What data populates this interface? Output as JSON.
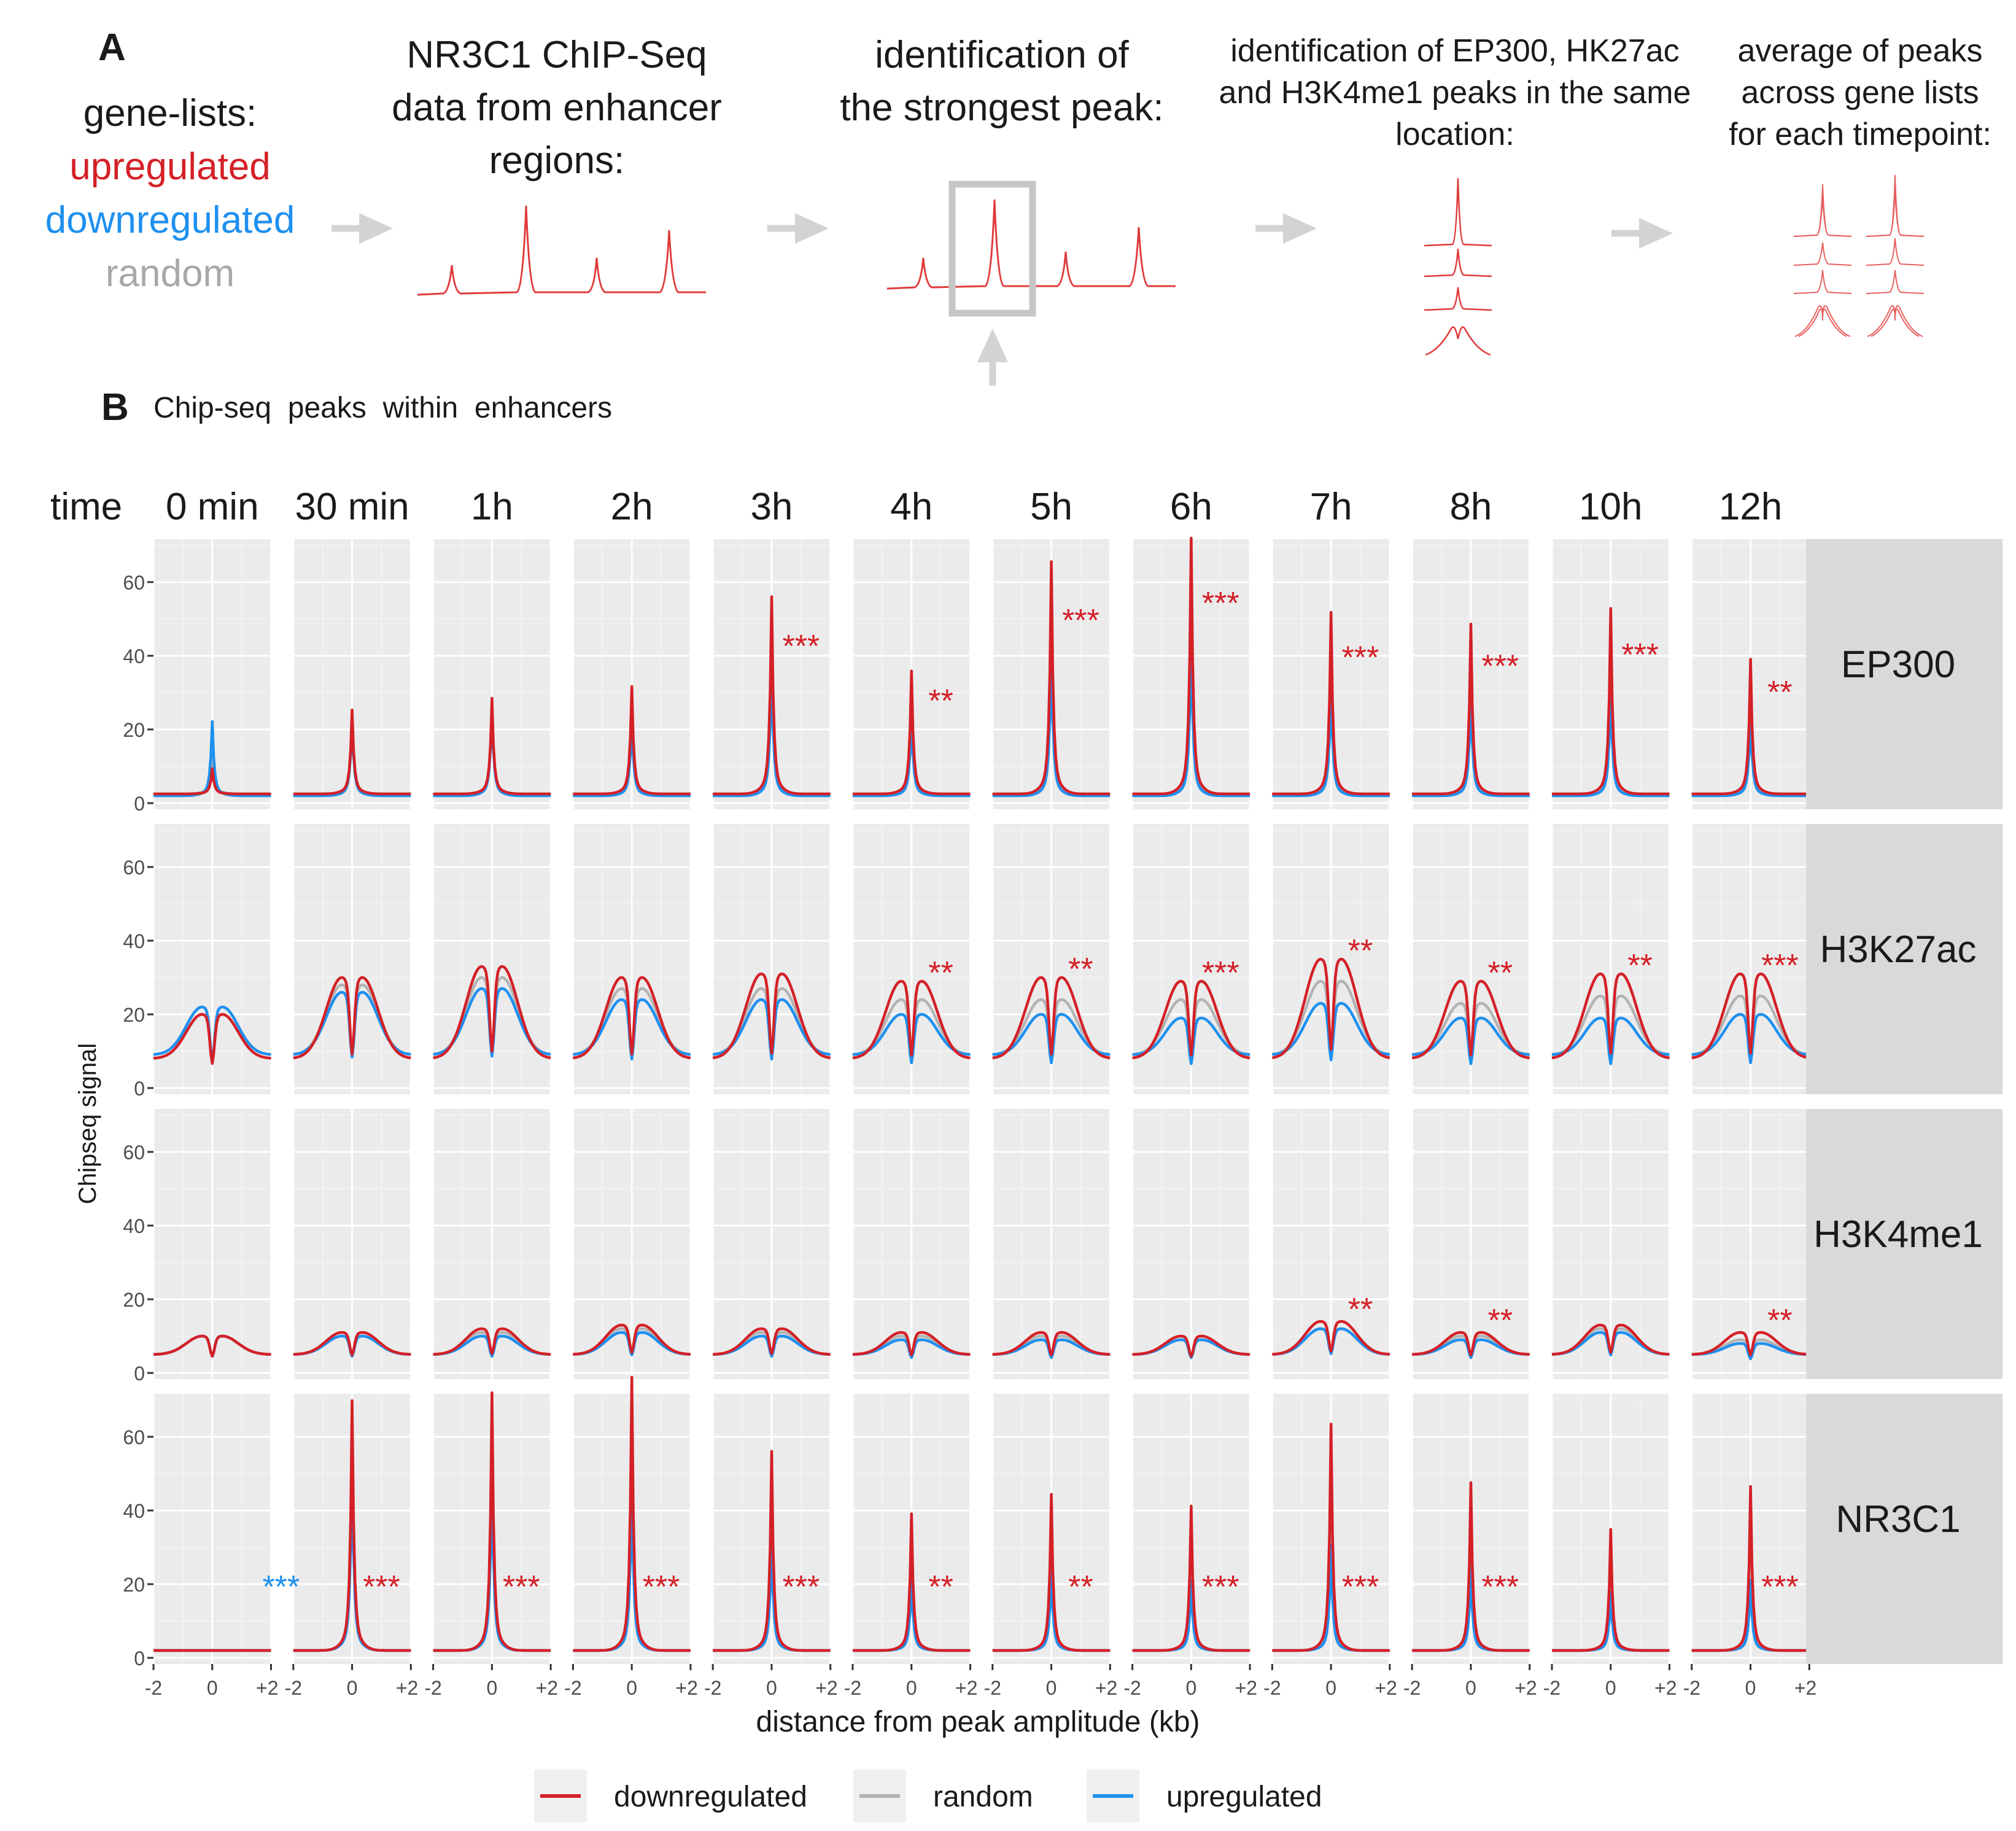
{
  "colors": {
    "downregulated": "#d42027",
    "random": "#b3b3b3",
    "upregulated": "#1e90f0",
    "panel_bg": "#ebebeb",
    "strip_bg": "#d9d9d9",
    "arrow": "#d3d3d3",
    "schematic_red": "#e03b3b",
    "text": "#1a1a1a"
  },
  "panelA": {
    "label": "A",
    "gene_lists": {
      "title": "gene-lists:",
      "items": [
        "upregulated",
        "downregulated",
        "random"
      ]
    },
    "steps": [
      {
        "lines": [
          "NR3C1 ChIP-Seq",
          "data from enhancer",
          "regions:"
        ]
      },
      {
        "lines": [
          "identification of",
          "the strongest peak:"
        ]
      },
      {
        "lines": [
          "identification of EP300, HK27ac",
          "and H3K4me1 peaks in the same",
          "location:"
        ]
      },
      {
        "lines": [
          "average of peaks",
          "across gene lists",
          "for each timepoint:"
        ]
      }
    ]
  },
  "panelB": {
    "label": "B",
    "title": "Chip-seq  peaks  within  enhancers"
  },
  "chart_data": {
    "type": "line",
    "time_header": "time",
    "timepoints": [
      "0 min",
      "30 min",
      "1h",
      "2h",
      "3h",
      "4h",
      "5h",
      "6h",
      "7h",
      "8h",
      "10h",
      "12h"
    ],
    "rows": [
      "EP300",
      "H3K27ac",
      "H3K4me1",
      "NR3C1"
    ],
    "xlabel": "distance from peak amplitude (kb)",
    "ylabel": "Chipseq signal",
    "xlim": [
      -2,
      2
    ],
    "ylim": [
      0,
      70
    ],
    "x_ticks": [
      "-2",
      "0",
      "+2"
    ],
    "y_ticks": [
      0,
      20,
      40,
      60
    ],
    "series_order": [
      "downregulated",
      "random",
      "upregulated"
    ],
    "legend": {
      "position": "bottom",
      "entries": [
        "downregulated",
        "random",
        "upregulated"
      ]
    },
    "peaks": {
      "EP300": {
        "downregulated": [
          9,
          24,
          27,
          30,
          53,
          34,
          62,
          68,
          49,
          46,
          50,
          37
        ],
        "random": [
          15,
          23,
          25,
          26,
          42,
          26,
          48,
          52,
          37,
          34,
          38,
          27
        ],
        "upregulated": [
          21,
          22,
          25,
          22,
          36,
          23,
          40,
          43,
          31,
          29,
          30,
          23
        ]
      },
      "H3K27ac": {
        "downregulated": [
          20,
          30,
          33,
          30,
          31,
          29,
          30,
          29,
          35,
          29,
          31,
          31
        ],
        "random": [
          22,
          28,
          30,
          27,
          27,
          24,
          24,
          24,
          29,
          23,
          25,
          25
        ],
        "upregulated": [
          22,
          26,
          27,
          24,
          24,
          20,
          20,
          19,
          23,
          19,
          19,
          20
        ]
      },
      "H3K4me1": {
        "downregulated": [
          10,
          11,
          12,
          13,
          12,
          11,
          11,
          10,
          14,
          11,
          13,
          11
        ],
        "random": [
          10,
          11,
          11,
          12,
          11,
          10,
          10,
          9,
          12,
          10,
          12,
          9
        ],
        "upregulated": [
          10,
          10,
          10,
          11,
          10,
          9,
          9,
          9,
          12,
          9,
          11,
          8
        ]
      },
      "NR3C1": {
        "downregulated": [
          2,
          66,
          68,
          72,
          53,
          37,
          42,
          39,
          60,
          45,
          33,
          44
        ],
        "random": [
          2,
          55,
          55,
          55,
          40,
          28,
          30,
          29,
          40,
          32,
          25,
          30
        ],
        "upregulated": [
          2,
          51,
          49,
          46,
          31,
          21,
          23,
          20,
          29,
          23,
          17,
          20
        ]
      }
    },
    "baselines": {
      "EP300": {
        "downregulated": 2.5,
        "random": 2.5,
        "upregulated": 2
      },
      "H3K27ac": {
        "downregulated": 8,
        "random": 9,
        "upregulated": 9
      },
      "H3K4me1": {
        "downregulated": 5,
        "random": 5,
        "upregulated": 5
      },
      "NR3C1": {
        "downregulated": 2,
        "random": 2,
        "upregulated": 2
      }
    },
    "annotations": [
      {
        "row": "EP300",
        "timepoint": "3h",
        "text": "***",
        "color": "downregulated"
      },
      {
        "row": "EP300",
        "timepoint": "4h",
        "text": "**",
        "color": "downregulated"
      },
      {
        "row": "EP300",
        "timepoint": "5h",
        "text": "***",
        "color": "downregulated"
      },
      {
        "row": "EP300",
        "timepoint": "6h",
        "text": "***",
        "color": "downregulated"
      },
      {
        "row": "EP300",
        "timepoint": "7h",
        "text": "***",
        "color": "downregulated"
      },
      {
        "row": "EP300",
        "timepoint": "8h",
        "text": "***",
        "color": "downregulated"
      },
      {
        "row": "EP300",
        "timepoint": "10h",
        "text": "***",
        "color": "downregulated"
      },
      {
        "row": "EP300",
        "timepoint": "12h",
        "text": "**",
        "color": "downregulated"
      },
      {
        "row": "H3K27ac",
        "timepoint": "4h",
        "text": "**",
        "color": "downregulated"
      },
      {
        "row": "H3K27ac",
        "timepoint": "5h",
        "text": "**",
        "color": "downregulated"
      },
      {
        "row": "H3K27ac",
        "timepoint": "6h",
        "text": "***",
        "color": "downregulated"
      },
      {
        "row": "H3K27ac",
        "timepoint": "7h",
        "text": "**",
        "color": "downregulated"
      },
      {
        "row": "H3K27ac",
        "timepoint": "8h",
        "text": "**",
        "color": "downregulated"
      },
      {
        "row": "H3K27ac",
        "timepoint": "10h",
        "text": "**",
        "color": "downregulated"
      },
      {
        "row": "H3K27ac",
        "timepoint": "12h",
        "text": "***",
        "color": "downregulated"
      },
      {
        "row": "H3K4me1",
        "timepoint": "7h",
        "text": "**",
        "color": "downregulated"
      },
      {
        "row": "H3K4me1",
        "timepoint": "8h",
        "text": "**",
        "color": "downregulated"
      },
      {
        "row": "H3K4me1",
        "timepoint": "12h",
        "text": "**",
        "color": "downregulated"
      },
      {
        "row": "NR3C1",
        "timepoint": "30 min",
        "text": "***",
        "color": "upregulated"
      },
      {
        "row": "NR3C1",
        "timepoint": "30 min",
        "text": "***",
        "color": "downregulated"
      },
      {
        "row": "NR3C1",
        "timepoint": "1h",
        "text": "***",
        "color": "downregulated"
      },
      {
        "row": "NR3C1",
        "timepoint": "2h",
        "text": "***",
        "color": "downregulated"
      },
      {
        "row": "NR3C1",
        "timepoint": "3h",
        "text": "***",
        "color": "downregulated"
      },
      {
        "row": "NR3C1",
        "timepoint": "4h",
        "text": "**",
        "color": "downregulated"
      },
      {
        "row": "NR3C1",
        "timepoint": "5h",
        "text": "**",
        "color": "downregulated"
      },
      {
        "row": "NR3C1",
        "timepoint": "6h",
        "text": "***",
        "color": "downregulated"
      },
      {
        "row": "NR3C1",
        "timepoint": "7h",
        "text": "***",
        "color": "downregulated"
      },
      {
        "row": "NR3C1",
        "timepoint": "8h",
        "text": "***",
        "color": "downregulated"
      },
      {
        "row": "NR3C1",
        "timepoint": "12h",
        "text": "***",
        "color": "downregulated"
      }
    ]
  }
}
